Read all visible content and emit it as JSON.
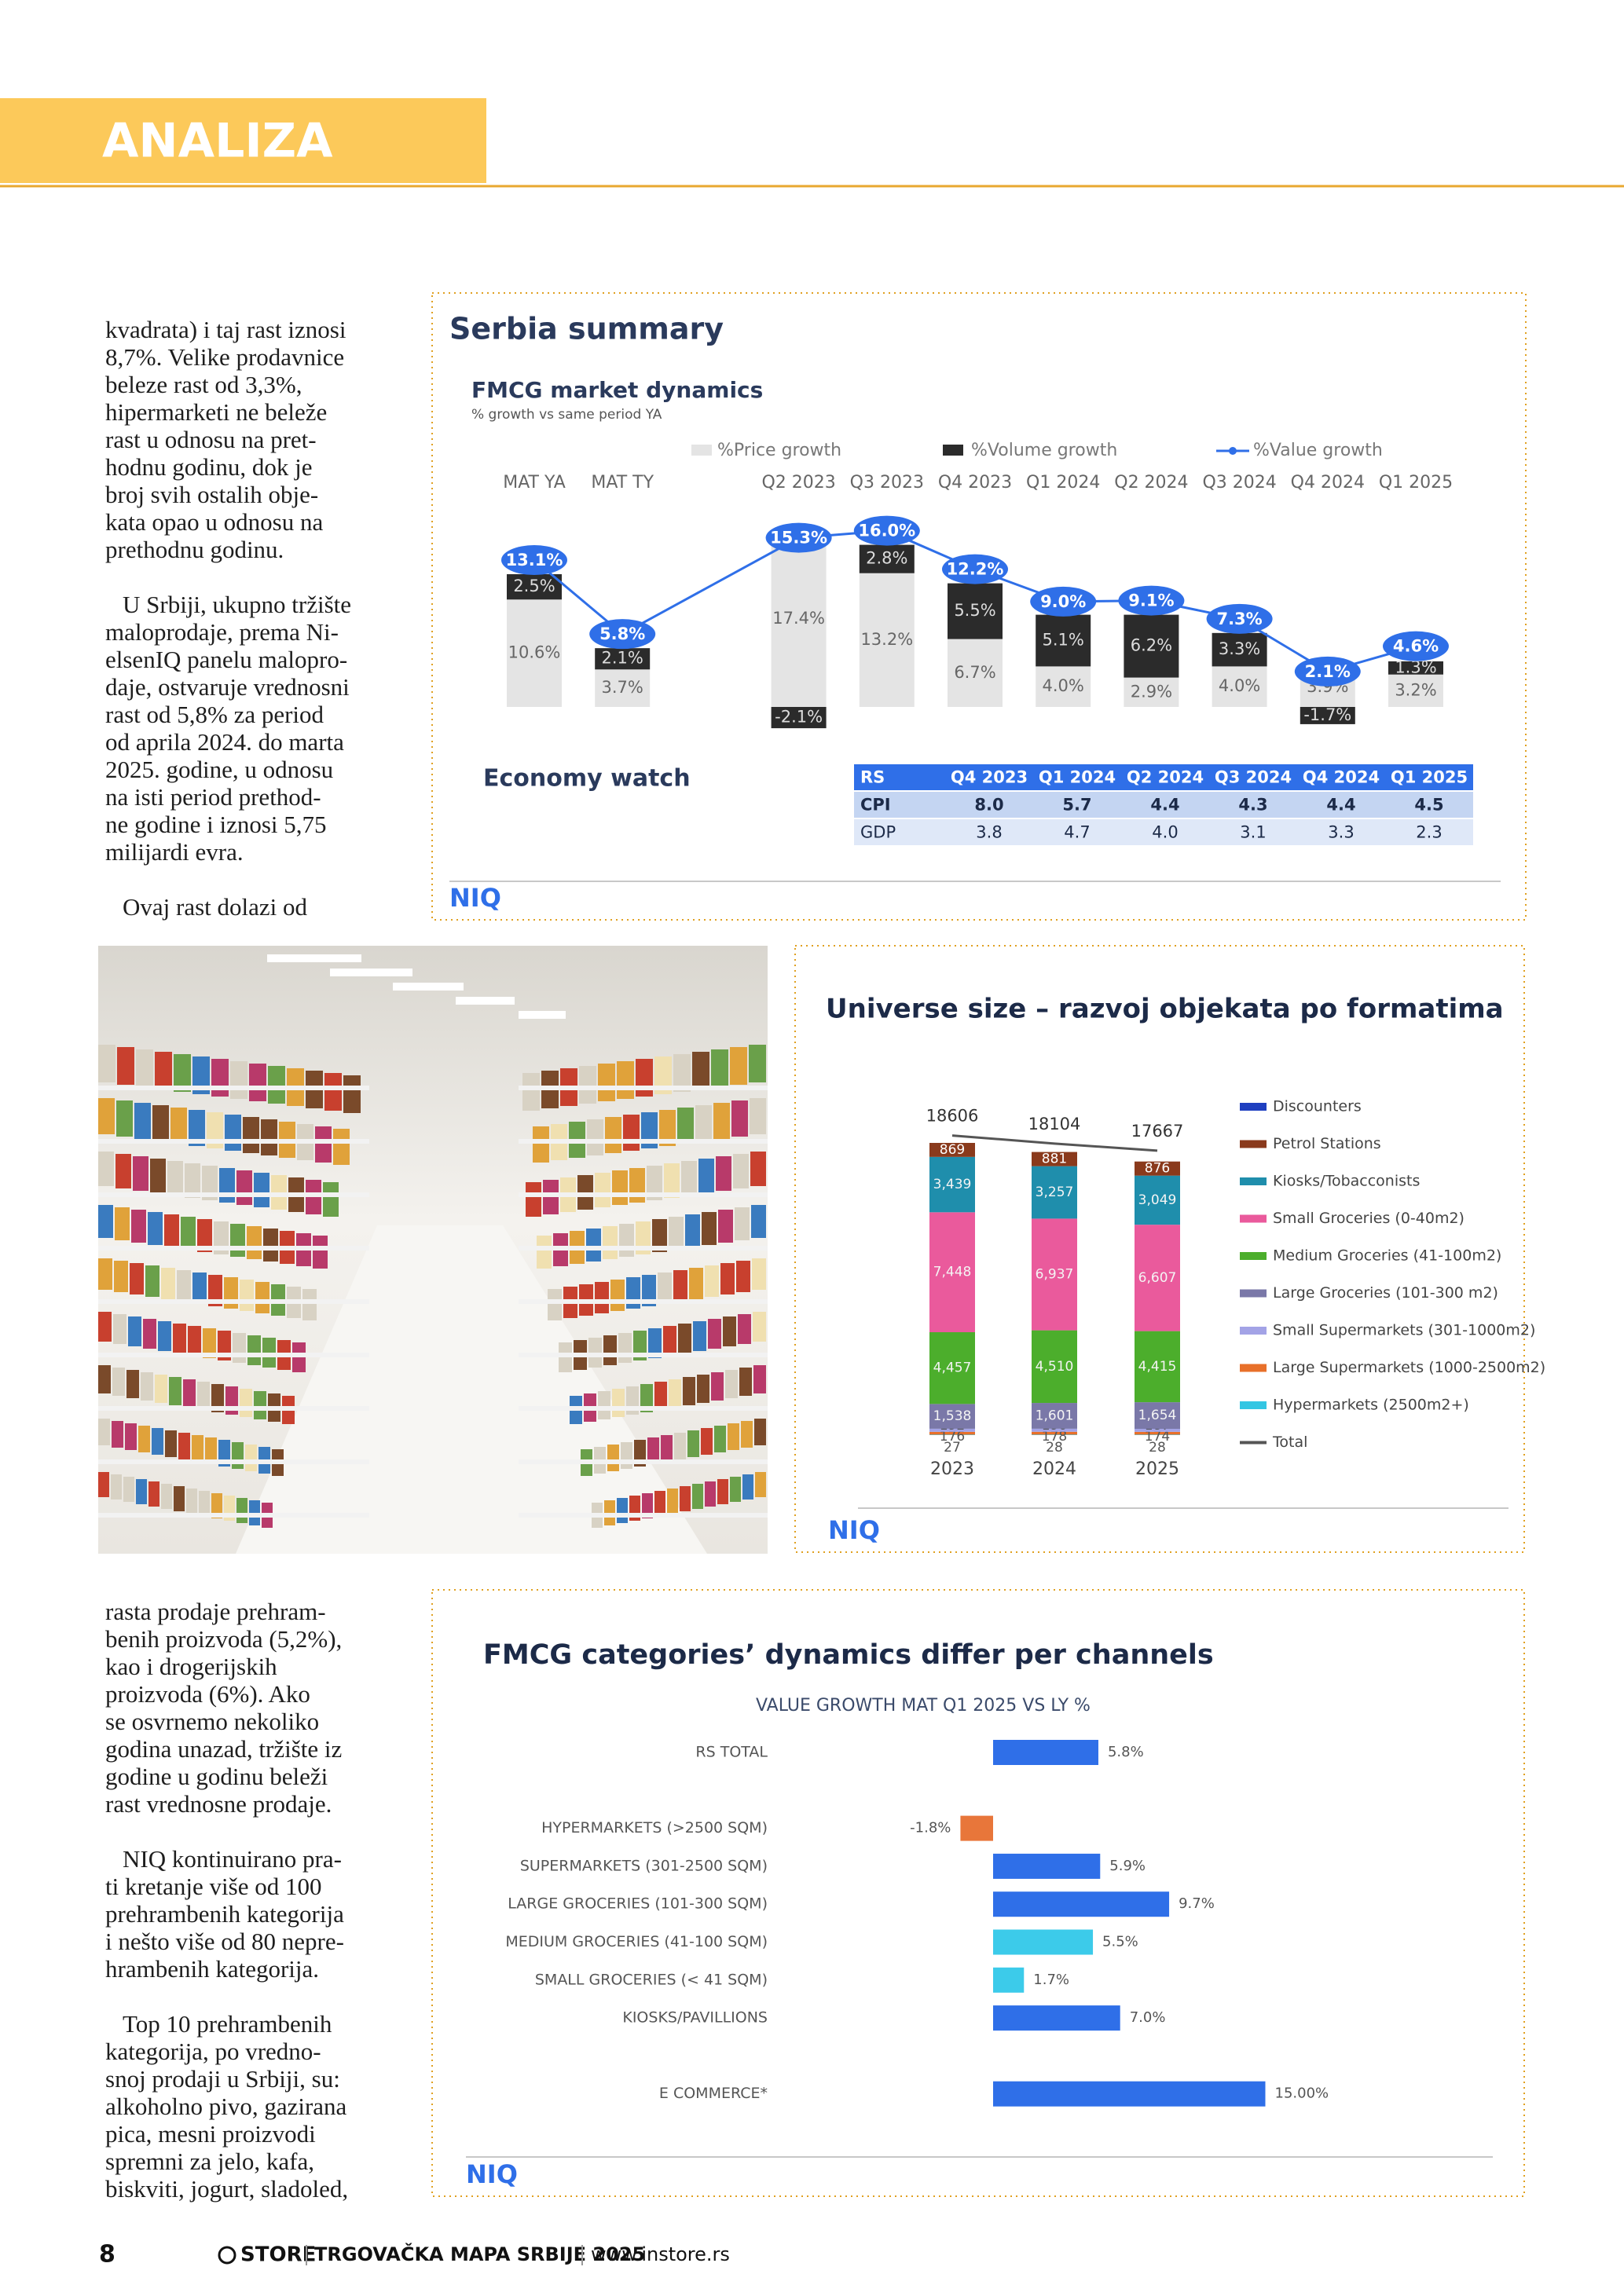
{
  "header": {
    "section": "ANALIZA"
  },
  "column_top": [
    [
      "kvadrata) i taj rast iznosi",
      "8,7%. Velike prodavnice",
      "beleze rast od 3,3%,",
      "hipermarketi ne beleže",
      "rast u odnosu na pret-",
      "hodnu godinu, dok je",
      "broj svih ostalih obje-",
      "kata opao u odnosu na",
      "prethodnu godinu."
    ],
    [
      "U Srbiji, ukupno tržište",
      "maloprodaje, prema Ni-",
      "elsenIQ panelu malopro-",
      "daje, ostvaruje vrednosni",
      "rast od 5,8% za period",
      "od aprila 2024. do marta",
      "2025. godine, u odnosu",
      "na isti period prethod-",
      "ne godine i iznosi 5,75",
      "milijardi evra."
    ],
    [
      "Ovaj rast dolazi od"
    ]
  ],
  "column_bottom": [
    [
      "rasta prodaje prehram-",
      "benih proizvoda (5,2%),",
      "kao i drogerijskih",
      "proizvoda (6%). Ako",
      "se osvrnemo nekoliko",
      "godina unazad, tržište iz",
      "godine u godinu beleži",
      "rast vrednosne prodaje."
    ],
    [
      "NIQ kontinuirano pra-",
      "ti kretanje više od 100",
      "prehrambenih kategorija",
      "i nešto više od 80 nepre-",
      "hrambenih kategorija."
    ],
    [
      "Top 10 prehrambenih",
      "kategorija, po vredno-",
      "snoj prodaji u Srbiji, su:",
      "alkoholno pivo, gazirana",
      "pica, mesni proizvodi",
      "spremni za jelo, kafa,",
      "biskviti, jogurt, sladoled,"
    ]
  ],
  "chart_data": [
    {
      "type": "bar",
      "title": "Serbia summary",
      "subtitle": "FMCG market dynamics",
      "note": "% growth vs same period YA",
      "logo": "NIQ",
      "categories": [
        "MAT YA",
        "MAT TY",
        "Q2 2023",
        "Q3 2023",
        "Q4 2023",
        "Q1 2024",
        "Q2 2024",
        "Q3 2024",
        "Q4 2024",
        "Q1 2025"
      ],
      "series": [
        {
          "name": "%Price growth",
          "color": "#e4e4e4",
          "values": [
            10.6,
            3.7,
            17.4,
            13.2,
            6.7,
            4.0,
            2.9,
            4.0,
            3.9,
            3.2
          ],
          "value_labels": [
            "10.6%",
            "3.7%",
            "17.4%",
            "13.2%",
            "6.7%",
            "4.0%",
            "2.9%",
            "4.0%",
            "3.9%",
            "3.2%"
          ]
        },
        {
          "name": "%Volume growth",
          "color": "#2b2b2b",
          "values": [
            2.5,
            2.1,
            -2.1,
            2.8,
            5.5,
            5.1,
            6.2,
            3.3,
            -1.7,
            1.3
          ],
          "value_labels": [
            "2.5%",
            "2.1%",
            "-2.1%",
            "2.8%",
            "5.5%",
            "5.1%",
            "6.2%",
            "3.3%",
            "-1.7%",
            "1.3%"
          ]
        },
        {
          "name": "%Value growth",
          "color": "#2f6fe8",
          "type": "line",
          "values": [
            13.1,
            5.8,
            15.3,
            16.0,
            12.2,
            9.0,
            9.1,
            7.3,
            2.1,
            4.6
          ],
          "value_labels": [
            "13.1%",
            "5.8%",
            "15.3%",
            "16.0%",
            "12.2%",
            "9.0%",
            "9.1%",
            "7.3%",
            "2.1%",
            "4.6%"
          ]
        }
      ]
    },
    {
      "type": "stacked-bar",
      "title": "Universe size – razvoj objekata po formatima",
      "logo": "NIQ",
      "categories": [
        "2023",
        "2024",
        "2025"
      ],
      "series": [
        {
          "name": "Hypermarkets (2500m2+)",
          "color": "#33c6e3",
          "values": [
            27,
            28,
            28
          ]
        },
        {
          "name": "Large Supermarkets (1000-2500m2)",
          "color": "#e8702a",
          "values": [
            176,
            178,
            174
          ]
        },
        {
          "name": "Small Supermarkets (301-1000m2)",
          "color": "#a3a3e6",
          "values": [
            192,
            190,
            187
          ]
        },
        {
          "name": "Large Groceries (101-300 m2)",
          "color": "#7a78a8",
          "values": [
            1538,
            1601,
            1654
          ],
          "value_labels": [
            "1,538",
            "1,601",
            "1,654"
          ]
        },
        {
          "name": "Medium Groceries (41-100m2)",
          "color": "#4cae2c",
          "values": [
            4457,
            4510,
            4415
          ],
          "value_labels": [
            "4,457",
            "4,510",
            "4,415"
          ]
        },
        {
          "name": "Small Groceries (0-40m2)",
          "color": "#ea5a9c",
          "values": [
            7448,
            6937,
            6607
          ],
          "value_labels": [
            "7,448",
            "6,937",
            "6,607"
          ]
        },
        {
          "name": "Kiosks/Tobacconists",
          "color": "#1f8eac",
          "values": [
            3439,
            3257,
            3049
          ],
          "value_labels": [
            "3,439",
            "3,257",
            "3,049"
          ]
        },
        {
          "name": "Petrol Stations",
          "color": "#8a3a1c",
          "values": [
            869,
            881,
            876
          ]
        },
        {
          "name": "Discounters",
          "color": "#1f3fc0",
          "values": [
            null,
            null,
            null
          ]
        }
      ],
      "total": {
        "name": "Total",
        "color": "#555555",
        "values": [
          18606,
          18104,
          17667
        ]
      }
    },
    {
      "type": "hbar",
      "title": "FMCG categories’ dynamics differ per channels",
      "subtitle": "VALUE GROWTH MAT Q1 2025 VS LY %",
      "logo": "NIQ",
      "categories": [
        "RS TOTAL",
        "HYPERMARKETS (>2500 SQM)",
        "SUPERMARKETS (301-2500 SQM)",
        "LARGE GROCERIES (101-300 SQM)",
        "MEDIUM GROCERIES (41-100 SQM)",
        "SMALL GROCERIES (< 41 SQM)",
        "KIOSKS/PAVILLIONS",
        "E COMMERCE*"
      ],
      "values": [
        5.8,
        -1.8,
        5.9,
        9.7,
        5.5,
        1.7,
        7.0,
        15.0
      ],
      "value_labels": [
        "5.8%",
        "-1.8%",
        "5.9%",
        "9.7%",
        "5.5%",
        "1.7%",
        "7.0%",
        "15.00%"
      ],
      "colors": [
        "#2f6fe8",
        "#e8763a",
        "#2f6fe8",
        "#2f6fe8",
        "#3ccbea",
        "#3ccbea",
        "#2f6fe8",
        "#2f6fe8"
      ]
    }
  ],
  "economy_watch": {
    "title": "Economy watch",
    "header": [
      "RS",
      "Q4 2023",
      "Q1 2024",
      "Q2 2024",
      "Q3 2024",
      "Q4 2024",
      "Q1 2025"
    ],
    "rows": [
      [
        "CPI",
        "8.0",
        "5.7",
        "4.4",
        "4.3",
        "4.4",
        "4.5"
      ],
      [
        "GDP",
        "3.8",
        "4.7",
        "4.0",
        "3.1",
        "3.3",
        "2.3"
      ]
    ]
  },
  "footer": {
    "page": "8",
    "brand": "STORE",
    "title": "TRGOVAČKA MAPA SRBIJE 2025",
    "url": "www.instore.rs"
  }
}
